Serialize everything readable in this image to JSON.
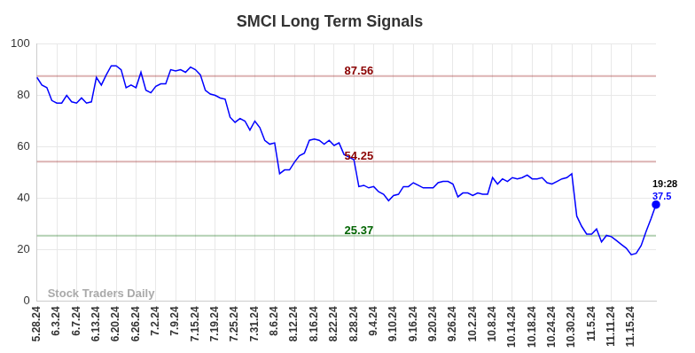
{
  "chart_data": {
    "type": "line",
    "title": "SMCI Long Term Signals",
    "categories": [
      "5.28.24",
      null,
      null,
      null,
      "6.3.24",
      null,
      null,
      null,
      "6.7.24",
      null,
      null,
      null,
      "6.13.24",
      null,
      null,
      null,
      "6.20.24",
      null,
      null,
      null,
      "6.26.24",
      null,
      null,
      null,
      "7.2.24",
      null,
      null,
      null,
      "7.9.24",
      null,
      null,
      null,
      "7.15.24",
      null,
      null,
      null,
      "7.19.24",
      null,
      null,
      null,
      "7.25.24",
      null,
      null,
      null,
      "7.31.24",
      null,
      null,
      null,
      "8.6.24",
      null,
      null,
      null,
      "8.12.24",
      null,
      null,
      null,
      "8.16.24",
      null,
      null,
      null,
      "8.22.24",
      null,
      null,
      null,
      "8.28.24",
      null,
      null,
      null,
      "9.4.24",
      null,
      null,
      null,
      "9.10.24",
      null,
      null,
      null,
      "9.16.24",
      null,
      null,
      null,
      "9.20.24",
      null,
      null,
      null,
      "9.26.24",
      null,
      null,
      null,
      "10.2.24",
      null,
      null,
      null,
      "10.8.24",
      null,
      null,
      null,
      "10.14.24",
      null,
      null,
      null,
      "10.18.24",
      null,
      null,
      null,
      "10.24.24",
      null,
      null,
      null,
      "10.30.24",
      null,
      null,
      null,
      "11.5.24",
      null,
      null,
      null,
      "11.11.24",
      null,
      null,
      null,
      "11.15.24",
      null,
      null,
      null,
      null,
      null
    ],
    "values": [
      87,
      84,
      83,
      78,
      77,
      77,
      80,
      77.5,
      77,
      79,
      77,
      77.5,
      87,
      84,
      88,
      91.5,
      91.5,
      90,
      83,
      84,
      83,
      89,
      82,
      81,
      83.5,
      84.5,
      84.5,
      90,
      89.5,
      90,
      89,
      91,
      90,
      88,
      82,
      80.5,
      80,
      79,
      78.5,
      71.5,
      69.5,
      71,
      70,
      66.5,
      70,
      67.5,
      62.5,
      61,
      61.5,
      49.5,
      51,
      51,
      54,
      56.5,
      57.5,
      62.5,
      63,
      62.5,
      61,
      62.5,
      60.5,
      61.5,
      57,
      56,
      55,
      44.5,
      45,
      44,
      44.5,
      42.5,
      41.5,
      39,
      41,
      41.5,
      44.5,
      44.5,
      46,
      45,
      44,
      44,
      44,
      46,
      46.5,
      46.5,
      45.5,
      40.5,
      42,
      42,
      41,
      42,
      41.5,
      41.5,
      48,
      45.5,
      47.5,
      46.5,
      48,
      47.5,
      48,
      49,
      47.5,
      47.5,
      48,
      46,
      45.5,
      46.5,
      47.5,
      48,
      49.5,
      33,
      29,
      26,
      26,
      28,
      23,
      25.5,
      25,
      23.5,
      22,
      20.5,
      18,
      18.5,
      21.5,
      27,
      32,
      37.5
    ],
    "color": "#0000ff",
    "ylim": [
      0,
      100
    ],
    "yticks": [
      0,
      20,
      40,
      60,
      80,
      100
    ],
    "grid": true,
    "signals": [
      {
        "value": 87.56,
        "color": "#8b0000"
      },
      {
        "value": 54.25,
        "color": "#8b0000"
      },
      {
        "value": 25.37,
        "color": "#006400"
      }
    ],
    "annotation": "19:28",
    "watermark": "Stock Traders Daily"
  }
}
